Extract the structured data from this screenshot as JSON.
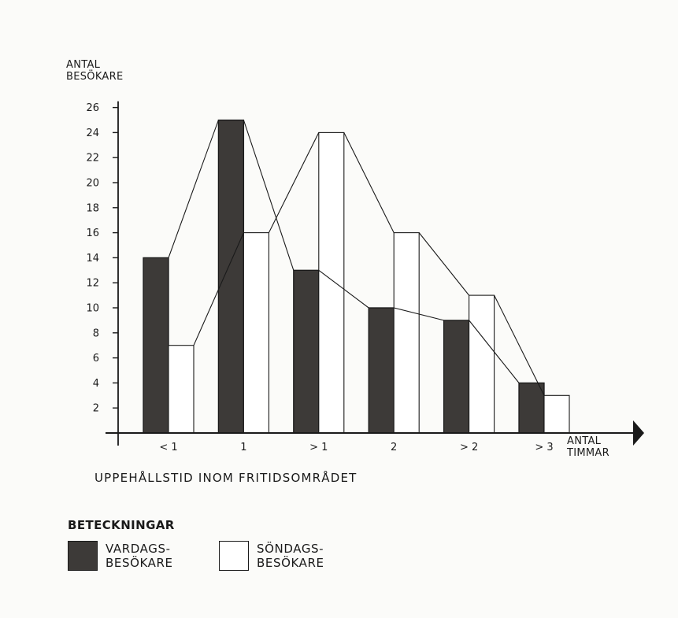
{
  "chart_data": {
    "type": "bar",
    "categories": [
      "< 1",
      "1",
      "> 1",
      "2",
      "> 2",
      "> 3"
    ],
    "series": [
      {
        "name": "VARDAGS-BESÖKARE",
        "values": [
          14,
          25,
          13,
          10,
          9,
          4
        ],
        "color": "#3d3a38",
        "pattern": "dark-fill"
      },
      {
        "name": "SÖNDAGS-BESÖKARE",
        "values": [
          7,
          16,
          24,
          16,
          11,
          3
        ],
        "color": "#ffffff",
        "pattern": "white-fill"
      }
    ],
    "ylabel_lines": [
      "ANTAL",
      "BESÖKARE"
    ],
    "xunit_lines": [
      "ANTAL",
      "TIMMAR"
    ],
    "xtitle": "UPPEHÅLLSTID INOM FRITIDSOMRÅDET",
    "yticks": [
      2,
      4,
      6,
      8,
      10,
      12,
      14,
      16,
      18,
      20,
      22,
      24,
      26
    ],
    "ylim": [
      0,
      26
    ],
    "grid": false,
    "connecting_lines": true,
    "legend": {
      "title": "BETECKNINGAR",
      "placement": "bottom-left",
      "items": [
        {
          "lines": [
            "VARDAGS-",
            "BESÖKARE"
          ],
          "color": "#3d3a38"
        },
        {
          "lines": [
            "SÖNDAGS-",
            "BESÖKARE"
          ],
          "color": "#ffffff"
        }
      ]
    }
  }
}
